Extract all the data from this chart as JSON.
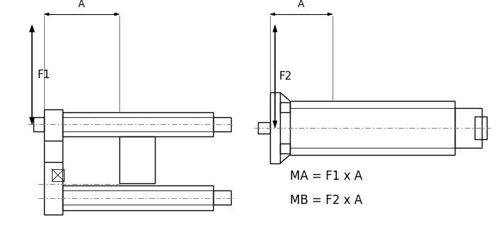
{
  "bg_color": "#ffffff",
  "line_color": "#000000",
  "dash_color": "#777777",
  "lw": 1.0,
  "thin_lw": 0.6,
  "fig_width": 6.98,
  "fig_height": 3.42,
  "dpi": 100,
  "text_color": "#000000",
  "formula1": "MA = F1 x A",
  "formula2": "MB = F2 x A",
  "label_A1": "A",
  "label_F1": "F1",
  "label_A2": "A",
  "label_F2": "F2"
}
